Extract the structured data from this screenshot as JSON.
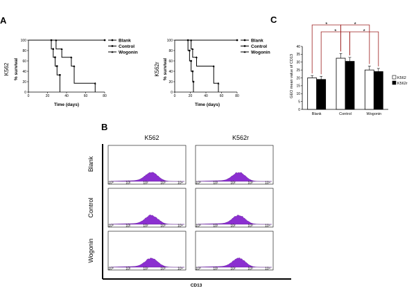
{
  "panels": {
    "a": "A",
    "b": "B",
    "c": "C"
  },
  "chart_data": [
    {
      "id": "survival-k562",
      "type": "line",
      "step": true,
      "ylabel": "% survival",
      "xlabel": "Time (days)",
      "cell_label": "K562",
      "xlim": [
        0,
        80
      ],
      "ylim": [
        0,
        100
      ],
      "xticks": [
        0,
        20,
        40,
        60,
        80
      ],
      "yticks": [
        0,
        20,
        40,
        60,
        80,
        100
      ],
      "series": [
        {
          "name": "Blank",
          "marker": "circle",
          "x": [
            0,
            80
          ],
          "y": [
            100,
            100
          ]
        },
        {
          "name": "Control",
          "marker": "square",
          "x": [
            0,
            24,
            26,
            28,
            30,
            33
          ],
          "y": [
            100,
            83,
            67,
            50,
            33,
            0
          ]
        },
        {
          "name": "Wogonin",
          "marker": "triangle",
          "x": [
            0,
            29,
            35,
            45,
            48,
            70
          ],
          "y": [
            100,
            83,
            67,
            50,
            17,
            0
          ]
        }
      ]
    },
    {
      "id": "survival-k562r",
      "type": "line",
      "step": true,
      "ylabel": "% survival",
      "xlabel": "Time (days)",
      "cell_label": "K562r",
      "xlim": [
        0,
        80
      ],
      "ylim": [
        0,
        100
      ],
      "xticks": [
        0,
        20,
        40,
        60,
        80
      ],
      "yticks": [
        0,
        20,
        40,
        60,
        80,
        100
      ],
      "series": [
        {
          "name": "Blank",
          "marker": "circle",
          "x": [
            0,
            80
          ],
          "y": [
            100,
            100
          ]
        },
        {
          "name": "Control",
          "marker": "square",
          "x": [
            0,
            17,
            19,
            21,
            23,
            24
          ],
          "y": [
            100,
            80,
            60,
            40,
            20,
            0
          ]
        },
        {
          "name": "Wogonin",
          "marker": "triangle",
          "x": [
            0,
            21,
            23,
            28,
            50,
            56
          ],
          "y": [
            100,
            83,
            67,
            50,
            17,
            0
          ]
        }
      ]
    },
    {
      "id": "cd13-bar",
      "type": "bar",
      "ylabel": "GEO mean value of CD13",
      "categories": [
        "Blank",
        "Control",
        "Wogonin"
      ],
      "ylim": [
        0,
        40
      ],
      "yticks": [
        0,
        5,
        10,
        15,
        20,
        25,
        30,
        35,
        40
      ],
      "legend_position": "right",
      "significance_marker": "*",
      "series": [
        {
          "name": "K562",
          "color": "#ffffff",
          "values": [
            20,
            32.5,
            25
          ],
          "errors": [
            1.5,
            3,
            2.5
          ]
        },
        {
          "name": "K562r",
          "color": "#000000",
          "values": [
            19,
            30.5,
            24
          ],
          "errors": [
            2,
            2.5,
            2
          ]
        }
      ]
    },
    {
      "id": "cd13-histograms",
      "type": "area",
      "columns": [
        "K562",
        "K562r"
      ],
      "rows": [
        "Blank",
        "Control",
        "Wogonin"
      ],
      "xlabel": "CD13",
      "fill": "#8b2fd0",
      "x_decades": [
        "10⁰",
        "10¹",
        "10²",
        "10³",
        "10⁴"
      ]
    }
  ]
}
